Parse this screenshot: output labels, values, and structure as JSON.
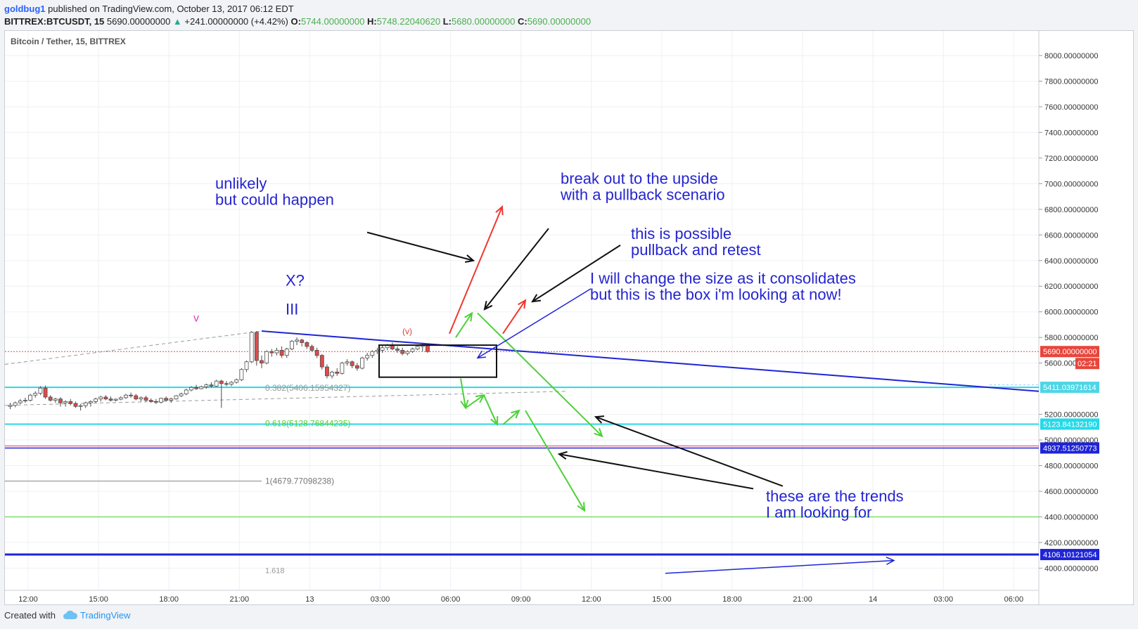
{
  "header": {
    "user": "goldbug1",
    "published": "published on TradingView.com, October 13, 2017 06:12 EDT",
    "symbol": "BITTREX:BTCUSDT, 15",
    "last": "5690.00000000",
    "change": "+241.00000000 (+4.42%)",
    "o_label": "O:",
    "o_value": "5744.00000000",
    "h_label": "H:",
    "h_value": "5748.22040620",
    "l_label": "L:",
    "l_value": "5680.00000000",
    "c_label": "C:",
    "c_value": "5690.00000000"
  },
  "footer": {
    "created_with": "Created with",
    "brand": "TradingView"
  },
  "colors": {
    "up_candle": "#ffffff",
    "down_candle": "#e04a4a",
    "candle_border": "#4b4b4b",
    "cyan": "#26d9e8",
    "green": "#4cd137",
    "blue": "#1f24d6",
    "red": "#f0372e",
    "annotation_text": "#2424d0",
    "price_badge": "#e8453c",
    "level_badge": "#1f24d6"
  },
  "chart_data": {
    "type": "candlestick",
    "title": "Bitcoin / Tether, 15, BITTREX",
    "y_range": [
      3950,
      8150
    ],
    "y_ticks": [
      "8000.00000000",
      "7800.00000000",
      "7600.00000000",
      "7400.00000000",
      "7200.00000000",
      "7000.00000000",
      "6800.00000000",
      "6600.00000000",
      "6400.00000000",
      "6200.00000000",
      "6000.00000000",
      "5800.00000000",
      "5600.00000000",
      "5200.00000000",
      "5000.00000000",
      "4800.00000000",
      "4600.00000000",
      "4400.00000000",
      "4200.00000000",
      "4000.00000000"
    ],
    "x_ticks": [
      "12:00",
      "15:00",
      "18:00",
      "21:00",
      "13",
      "03:00",
      "06:00",
      "09:00",
      "12:00",
      "15:00",
      "18:00",
      "21:00",
      "14",
      "03:00",
      "06:00"
    ],
    "candles": [
      [
        5262,
        5290,
        5240,
        5270
      ],
      [
        5270,
        5300,
        5255,
        5290
      ],
      [
        5290,
        5320,
        5280,
        5305
      ],
      [
        5305,
        5330,
        5290,
        5310
      ],
      [
        5310,
        5360,
        5300,
        5350
      ],
      [
        5350,
        5380,
        5330,
        5365
      ],
      [
        5365,
        5420,
        5350,
        5405
      ],
      [
        5405,
        5425,
        5320,
        5335
      ],
      [
        5335,
        5350,
        5300,
        5310
      ],
      [
        5310,
        5330,
        5290,
        5320
      ],
      [
        5320,
        5335,
        5260,
        5290
      ],
      [
        5290,
        5310,
        5260,
        5300
      ],
      [
        5300,
        5320,
        5270,
        5285
      ],
      [
        5285,
        5300,
        5250,
        5262
      ],
      [
        5262,
        5280,
        5230,
        5268
      ],
      [
        5268,
        5300,
        5250,
        5290
      ],
      [
        5290,
        5310,
        5260,
        5300
      ],
      [
        5300,
        5330,
        5290,
        5320
      ],
      [
        5320,
        5345,
        5300,
        5335
      ],
      [
        5335,
        5350,
        5310,
        5320
      ],
      [
        5320,
        5340,
        5300,
        5310
      ],
      [
        5310,
        5325,
        5300,
        5318
      ],
      [
        5318,
        5340,
        5310,
        5330
      ],
      [
        5330,
        5360,
        5320,
        5350
      ],
      [
        5350,
        5370,
        5330,
        5345
      ],
      [
        5345,
        5360,
        5310,
        5320
      ],
      [
        5320,
        5340,
        5300,
        5330
      ],
      [
        5330,
        5345,
        5300,
        5310
      ],
      [
        5310,
        5325,
        5290,
        5300
      ],
      [
        5300,
        5320,
        5280,
        5295
      ],
      [
        5295,
        5330,
        5285,
        5325
      ],
      [
        5325,
        5340,
        5300,
        5310
      ],
      [
        5310,
        5330,
        5290,
        5320
      ],
      [
        5320,
        5350,
        5315,
        5345
      ],
      [
        5345,
        5370,
        5335,
        5360
      ],
      [
        5360,
        5400,
        5350,
        5390
      ],
      [
        5390,
        5420,
        5380,
        5410
      ],
      [
        5410,
        5430,
        5390,
        5400
      ],
      [
        5400,
        5425,
        5395,
        5415
      ],
      [
        5415,
        5440,
        5400,
        5430
      ],
      [
        5430,
        5450,
        5410,
        5420
      ],
      [
        5420,
        5470,
        5415,
        5460
      ],
      [
        5460,
        5470,
        5250,
        5440
      ],
      [
        5440,
        5460,
        5420,
        5435
      ],
      [
        5435,
        5460,
        5420,
        5450
      ],
      [
        5450,
        5480,
        5440,
        5470
      ],
      [
        5470,
        5560,
        5460,
        5550
      ],
      [
        5550,
        5620,
        5530,
        5610
      ],
      [
        5610,
        5850,
        5600,
        5840
      ],
      [
        5840,
        5850,
        5580,
        5620
      ],
      [
        5620,
        5660,
        5560,
        5600
      ],
      [
        5600,
        5700,
        5590,
        5690
      ],
      [
        5690,
        5710,
        5650,
        5680
      ],
      [
        5680,
        5720,
        5660,
        5700
      ],
      [
        5700,
        5730,
        5640,
        5660
      ],
      [
        5660,
        5720,
        5640,
        5710
      ],
      [
        5710,
        5780,
        5700,
        5770
      ],
      [
        5770,
        5800,
        5740,
        5780
      ],
      [
        5780,
        5790,
        5730,
        5760
      ],
      [
        5760,
        5770,
        5710,
        5730
      ],
      [
        5730,
        5745,
        5690,
        5700
      ],
      [
        5700,
        5720,
        5640,
        5660
      ],
      [
        5660,
        5670,
        5550,
        5570
      ],
      [
        5570,
        5590,
        5480,
        5500
      ],
      [
        5500,
        5540,
        5480,
        5530
      ],
      [
        5530,
        5560,
        5500,
        5520
      ],
      [
        5520,
        5610,
        5510,
        5600
      ],
      [
        5600,
        5630,
        5580,
        5610
      ],
      [
        5610,
        5620,
        5560,
        5580
      ],
      [
        5580,
        5600,
        5540,
        5560
      ],
      [
        5560,
        5650,
        5550,
        5640
      ],
      [
        5640,
        5680,
        5620,
        5660
      ],
      [
        5660,
        5700,
        5640,
        5690
      ],
      [
        5690,
        5720,
        5670,
        5700
      ],
      [
        5700,
        5740,
        5680,
        5720
      ],
      [
        5720,
        5750,
        5700,
        5740
      ],
      [
        5740,
        5760,
        5700,
        5710
      ],
      [
        5710,
        5730,
        5680,
        5700
      ],
      [
        5700,
        5720,
        5660,
        5675
      ],
      [
        5675,
        5700,
        5660,
        5690
      ],
      [
        5690,
        5720,
        5680,
        5710
      ],
      [
        5710,
        5740,
        5700,
        5730
      ],
      [
        5730,
        5760,
        5690,
        5744
      ],
      [
        5744,
        5748,
        5680,
        5690
      ]
    ],
    "current_price": "5690.00000000",
    "countdown": "02:21",
    "levels": [
      {
        "badge": "5411.03971614"
      },
      {
        "badge": "5123.84132190"
      },
      {
        "badge": "4937.51250773"
      },
      {
        "badge": "4106.10121054"
      }
    ],
    "fib_labels": [
      "0.382(5406.15954327)",
      "0.618(5128.76844235)",
      "1(4679.77098238)"
    ],
    "wave_labels": [
      "v",
      "X?",
      "III",
      "(v)"
    ],
    "annotations": [
      [
        "unlikely",
        "but could happen"
      ],
      [
        "break out to the upside",
        "with a pullback scenario"
      ],
      [
        "this is possible",
        "pullback and retest"
      ],
      [
        "I will change the size as it consolidates",
        "but this is the box i'm looking at now!"
      ],
      [
        "these are the trends",
        "I am looking for"
      ]
    ]
  }
}
